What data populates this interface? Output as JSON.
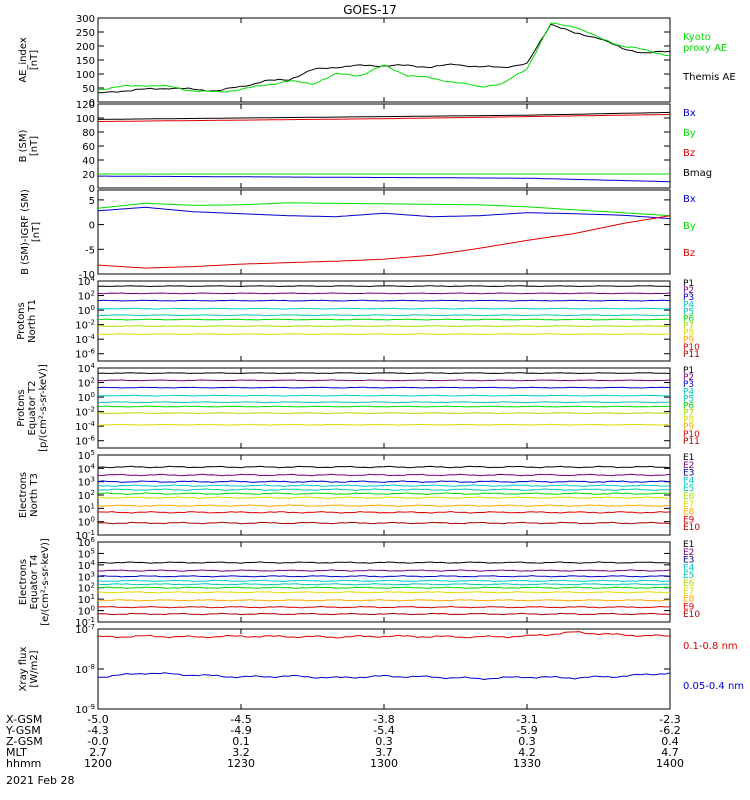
{
  "title": "GOES-17",
  "date": "2021 Feb 28",
  "colors": {
    "black": "#000000",
    "blue": "#0000cc",
    "green": "#00dd00",
    "red": "#dd0000",
    "cyan": "#00cccc",
    "teal": "#00ccaa",
    "yellowgreen": "#aadd00",
    "yellow": "#dddd00",
    "orange": "#ffaa00",
    "darkred": "#aa0000",
    "navy": "#000088",
    "purple": "#770077"
  },
  "x_axis": {
    "rows": [
      {
        "label": "X-GSM",
        "values": [
          "-5.0",
          "-4.5",
          "-3.8",
          "-3.1",
          "-2.3"
        ]
      },
      {
        "label": "Y-GSM",
        "values": [
          "-4.3",
          "-4.9",
          "-5.4",
          "-5.9",
          "-6.2"
        ]
      },
      {
        "label": "Z-GSM",
        "values": [
          "-0.0",
          "0.1",
          "0.3",
          "0.3",
          "0.4"
        ]
      },
      {
        "label": "MLT",
        "values": [
          "2.7",
          "3.2",
          "3.7",
          "4.2",
          "4.7"
        ]
      },
      {
        "label": "hhmm",
        "values": [
          "1200",
          "1230",
          "1300",
          "1330",
          "1400"
        ]
      }
    ]
  },
  "chart_data": [
    {
      "type": "line",
      "ylabel": [
        "AE_index",
        "[nT]"
      ],
      "ylim": [
        0,
        300
      ],
      "scale": "linear",
      "yticks": [
        "0",
        "50",
        "100",
        "150",
        "200",
        "250",
        "300"
      ],
      "x": [
        0,
        5,
        10,
        15,
        20,
        25,
        30,
        35,
        40,
        45,
        50,
        55,
        60,
        65,
        70,
        75,
        80,
        85,
        90,
        95,
        100,
        105,
        110,
        115,
        120
      ],
      "series": [
        {
          "name": "Themis AE",
          "color": "#000000",
          "values": [
            30,
            40,
            45,
            50,
            45,
            40,
            55,
            75,
            80,
            115,
            125,
            130,
            130,
            130,
            125,
            135,
            125,
            125,
            135,
            280,
            245,
            230,
            190,
            175,
            180
          ]
        },
        {
          "name": "Kyoto proxy AE",
          "color": "#00dd00",
          "values": [
            45,
            55,
            60,
            55,
            40,
            35,
            45,
            60,
            75,
            65,
            100,
            95,
            130,
            95,
            85,
            70,
            55,
            65,
            120,
            280,
            270,
            230,
            200,
            185,
            165
          ]
        }
      ],
      "legend": [
        {
          "text": "Kyoto",
          "color": "#00dd00"
        },
        {
          "text": "proxy AE",
          "color": "#00dd00"
        },
        {
          "text": "Themis AE",
          "color": "#000000"
        }
      ]
    },
    {
      "type": "line",
      "ylabel": [
        "B (SM)",
        "[nT]"
      ],
      "ylim": [
        0,
        120
      ],
      "scale": "linear",
      "yticks": [
        "0",
        "20",
        "40",
        "60",
        "80",
        "100",
        "120"
      ],
      "x": [
        0,
        30,
        60,
        90,
        120
      ],
      "series": [
        {
          "name": "Bx",
          "color": "#0000cc",
          "values": [
            17,
            16,
            15,
            14,
            9
          ]
        },
        {
          "name": "By",
          "color": "#00dd00",
          "values": [
            20,
            20,
            20,
            20,
            20
          ]
        },
        {
          "name": "Bz",
          "color": "#dd0000",
          "values": [
            95,
            97,
            99,
            102,
            105
          ]
        },
        {
          "name": "Bmag",
          "color": "#000000",
          "values": [
            98,
            100,
            102,
            104,
            108
          ]
        }
      ],
      "legend": [
        {
          "text": "Bx",
          "color": "#0000cc"
        },
        {
          "text": "By",
          "color": "#00dd00"
        },
        {
          "text": "Bz",
          "color": "#dd0000"
        },
        {
          "text": "Bmag",
          "color": "#000000"
        }
      ]
    },
    {
      "type": "line",
      "ylabel": [
        "B (SM)-IGRF (SM)",
        "[nT]"
      ],
      "ylim": [
        -10,
        7
      ],
      "scale": "linear",
      "yticks": [
        "-10",
        "-5",
        "0",
        "5"
      ],
      "ytick_values": [
        -10,
        -5,
        0,
        5
      ],
      "x": [
        0,
        10,
        20,
        30,
        40,
        50,
        60,
        70,
        80,
        90,
        100,
        110,
        120
      ],
      "series": [
        {
          "name": "Bx",
          "color": "#0000cc",
          "values": [
            2.8,
            3.5,
            2.6,
            2.2,
            1.8,
            1.6,
            2.3,
            1.6,
            1.8,
            2.4,
            2.2,
            1.9,
            1.2
          ]
        },
        {
          "name": "By",
          "color": "#00dd00",
          "values": [
            3.3,
            4.3,
            3.9,
            4.0,
            4.4,
            4.3,
            4.2,
            4.1,
            4.0,
            3.6,
            3.0,
            2.4,
            1.8
          ]
        },
        {
          "name": "Bz",
          "color": "#dd0000",
          "values": [
            -8.2,
            -8.8,
            -8.5,
            -8.0,
            -7.7,
            -7.4,
            -7.0,
            -6.2,
            -4.8,
            -3.2,
            -1.8,
            0.2,
            1.8
          ]
        }
      ],
      "legend": [
        {
          "text": "Bx",
          "color": "#0000cc"
        },
        {
          "text": "By",
          "color": "#00dd00"
        },
        {
          "text": "Bz",
          "color": "#dd0000"
        }
      ]
    },
    {
      "type": "line",
      "ylabel": [
        "Protons",
        "North T1"
      ],
      "ylim_log": [
        -7,
        4
      ],
      "scale": "log",
      "yticks": [
        "10^-6",
        "10^-4",
        "10^-2",
        "10^0",
        "10^2",
        "10^4"
      ],
      "ytick_exps": [
        -6,
        -4,
        -2,
        0,
        2,
        4
      ],
      "levels_log": [
        3.3,
        2.3,
        1.3,
        0.2,
        -0.7,
        -1.3,
        -2.2,
        -3.3
      ],
      "level_colors": [
        "#000000",
        "#770077",
        "#0000cc",
        "#00cccc",
        "#00ccaa",
        "#00dd00",
        "#aadd00",
        "#dddd00"
      ],
      "legend": [
        {
          "text": "P1",
          "color": "#000000"
        },
        {
          "text": "P2",
          "color": "#770077"
        },
        {
          "text": "P3",
          "color": "#0000cc"
        },
        {
          "text": "P4",
          "color": "#00cccc"
        },
        {
          "text": "P5",
          "color": "#00ccaa"
        },
        {
          "text": "P6",
          "color": "#00dd00"
        },
        {
          "text": "P7",
          "color": "#aadd00"
        },
        {
          "text": "P8",
          "color": "#dddd00"
        },
        {
          "text": "P9",
          "color": "#ffaa00"
        },
        {
          "text": "P10",
          "color": "#dd0000"
        },
        {
          "text": "P11",
          "color": "#aa0000"
        }
      ]
    },
    {
      "type": "line",
      "ylabel": [
        "Protons",
        "Equator T2",
        "[p/(cm²-s-sr-keV)]"
      ],
      "ylim_log": [
        -7,
        4
      ],
      "scale": "log",
      "yticks": [
        "10^-6",
        "10^-4",
        "10^-2",
        "10^0",
        "10^2",
        "10^4"
      ],
      "ytick_exps": [
        -6,
        -4,
        -2,
        0,
        2,
        4
      ],
      "levels_log": [
        3.3,
        2.3,
        1.3,
        0.2,
        -0.7,
        -1.3,
        -2.2,
        -3.8
      ],
      "level_colors": [
        "#000000",
        "#770077",
        "#0000cc",
        "#00cccc",
        "#00ccaa",
        "#00dd00",
        "#aadd00",
        "#dddd00"
      ],
      "legend": [
        {
          "text": "P1",
          "color": "#000000"
        },
        {
          "text": "P2",
          "color": "#770077"
        },
        {
          "text": "P3",
          "color": "#0000cc"
        },
        {
          "text": "P4",
          "color": "#00cccc"
        },
        {
          "text": "P5",
          "color": "#00ccaa"
        },
        {
          "text": "P6",
          "color": "#00dd00"
        },
        {
          "text": "P7",
          "color": "#aadd00"
        },
        {
          "text": "P8",
          "color": "#dddd00"
        },
        {
          "text": "P9",
          "color": "#ffaa00"
        },
        {
          "text": "P10",
          "color": "#dd0000"
        },
        {
          "text": "P11",
          "color": "#aa0000"
        }
      ]
    },
    {
      "type": "line",
      "ylabel": [
        "Electrons",
        "North T3"
      ],
      "ylim_log": [
        -1,
        5
      ],
      "scale": "log",
      "yticks": [
        "10^-1",
        "10^0",
        "10^1",
        "10^2",
        "10^3",
        "10^4",
        "10^5"
      ],
      "ytick_exps": [
        -1,
        0,
        1,
        2,
        3,
        4,
        5
      ],
      "levels_log": [
        4.1,
        3.5,
        3.0,
        2.7,
        2.4,
        2.1,
        1.8,
        1.2,
        0.7,
        -0.1
      ],
      "level_colors": [
        "#000000",
        "#770077",
        "#0000cc",
        "#00cccc",
        "#00ccaa",
        "#00dd00",
        "#dddd00",
        "#ffaa00",
        "#dd0000",
        "#aa0000"
      ],
      "legend": [
        {
          "text": "E1",
          "color": "#000000"
        },
        {
          "text": "E2",
          "color": "#770077"
        },
        {
          "text": "E3",
          "color": "#000088"
        },
        {
          "text": "E4",
          "color": "#00cccc"
        },
        {
          "text": "E5",
          "color": "#00ccaa"
        },
        {
          "text": "E6",
          "color": "#aadd00"
        },
        {
          "text": "E7",
          "color": "#dddd00"
        },
        {
          "text": "E8",
          "color": "#ffaa00"
        },
        {
          "text": "E9",
          "color": "#dd0000"
        },
        {
          "text": "E10",
          "color": "#aa0000"
        }
      ]
    },
    {
      "type": "line",
      "ylabel": [
        "Electrons",
        "Equator T4",
        "[e/(cm²-s-sr-keV)]"
      ],
      "ylim_log": [
        -1,
        6
      ],
      "scale": "log",
      "yticks": [
        "10^-1",
        "10^0",
        "10^1",
        "10^2",
        "10^3",
        "10^4",
        "10^5",
        "10^6"
      ],
      "ytick_exps": [
        -1,
        0,
        1,
        2,
        3,
        4,
        5,
        6
      ],
      "levels_log": [
        4.2,
        3.5,
        3.0,
        2.6,
        2.3,
        2.0,
        1.6,
        0.9,
        0.3,
        -0.3
      ],
      "level_colors": [
        "#000000",
        "#770077",
        "#0000cc",
        "#00cccc",
        "#00ccaa",
        "#00dd00",
        "#dddd00",
        "#ffaa00",
        "#dd0000",
        "#aa0000"
      ],
      "legend": [
        {
          "text": "E1",
          "color": "#000000"
        },
        {
          "text": "E2",
          "color": "#770077"
        },
        {
          "text": "E3",
          "color": "#000088"
        },
        {
          "text": "E4",
          "color": "#00cccc"
        },
        {
          "text": "E5",
          "color": "#00ccaa"
        },
        {
          "text": "E6",
          "color": "#aadd00"
        },
        {
          "text": "E7",
          "color": "#dddd00"
        },
        {
          "text": "E8",
          "color": "#ffaa00"
        },
        {
          "text": "E9",
          "color": "#dd0000"
        },
        {
          "text": "E10",
          "color": "#aa0000"
        }
      ]
    },
    {
      "type": "line",
      "ylabel": [
        "Xray flux",
        "[W/m2]"
      ],
      "ylim_log": [
        -9,
        -7
      ],
      "scale": "log",
      "yticks": [
        "10^-9",
        "10^-8",
        "10^-7"
      ],
      "ytick_exps": [
        -9,
        -8,
        -7
      ],
      "x": [
        0,
        10,
        20,
        30,
        40,
        50,
        60,
        70,
        80,
        90,
        100,
        110,
        120
      ],
      "series": [
        {
          "name": "0.1-0.8 nm",
          "color": "#dd0000",
          "values_log": [
            -7.2,
            -7.18,
            -7.2,
            -7.18,
            -7.19,
            -7.2,
            -7.18,
            -7.19,
            -7.2,
            -7.18,
            -7.08,
            -7.15,
            -7.18
          ]
        },
        {
          "name": "0.05-0.4 nm",
          "color": "#0000cc",
          "values_log": [
            -8.2,
            -8.1,
            -8.15,
            -8.2,
            -8.18,
            -8.22,
            -8.18,
            -8.2,
            -8.24,
            -8.2,
            -8.22,
            -8.18,
            -8.1
          ]
        }
      ],
      "legend": [
        {
          "text": "0.1-0.8 nm",
          "color": "#dd0000"
        },
        {
          "text": "0.05-0.4 nm",
          "color": "#0000cc"
        }
      ]
    }
  ]
}
